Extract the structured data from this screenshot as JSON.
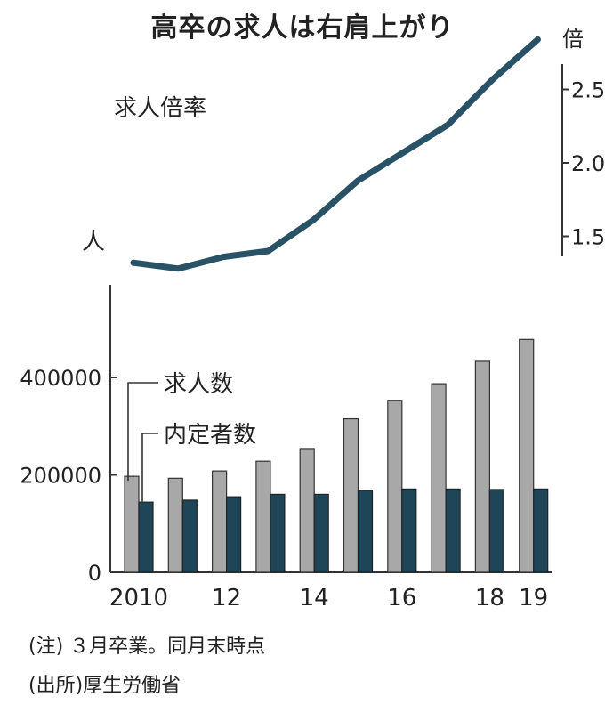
{
  "title": "高卒の求人は右肩上がり",
  "top_chart_unit": "倍",
  "top_series_label": "求人倍率",
  "bottom_chart_unit": "人",
  "notes": {
    "note1": "(注) ３月卒業。同月末時点",
    "source": "(出所)厚生労働省"
  },
  "colors": {
    "line": "#2a5266",
    "bar_offers": "#a8a8a8",
    "bar_hired": "#1e4658",
    "axis": "#333333"
  },
  "chart_data": [
    {
      "type": "line",
      "title": "",
      "x": [
        2010,
        2011,
        2012,
        2013,
        2014,
        2015,
        2016,
        2017,
        2018,
        2019
      ],
      "series": [
        {
          "name": "求人倍率",
          "values": [
            1.32,
            1.28,
            1.36,
            1.4,
            1.61,
            1.88,
            2.07,
            2.26,
            2.57,
            2.84
          ]
        }
      ],
      "ylabel": "倍",
      "yticks": [
        "1.5",
        "2.0",
        "2.5"
      ],
      "ytick_values": [
        1.5,
        2.0,
        2.5
      ],
      "ylim": [
        1.0,
        3.0
      ]
    },
    {
      "type": "bar",
      "categories": [
        "2010",
        "2011",
        "2012",
        "2013",
        "2014",
        "2015",
        "2016",
        "2017",
        "2018",
        "2019"
      ],
      "xtick_labels": [
        "2010",
        "",
        "12",
        "",
        "14",
        "",
        "16",
        "",
        "18",
        "19"
      ],
      "series": [
        {
          "name": "求人数",
          "values": [
            197000,
            193000,
            208000,
            228000,
            254000,
            315000,
            353000,
            387000,
            433000,
            478000
          ]
        },
        {
          "name": "内定者数",
          "values": [
            144000,
            148000,
            155000,
            160000,
            160000,
            168000,
            171000,
            171000,
            170000,
            171000
          ]
        }
      ],
      "ylabel": "人",
      "yticks": [
        "0",
        "200000",
        "400000"
      ],
      "ytick_values": [
        0,
        200000,
        400000
      ],
      "ylim": [
        0,
        590000
      ]
    }
  ]
}
